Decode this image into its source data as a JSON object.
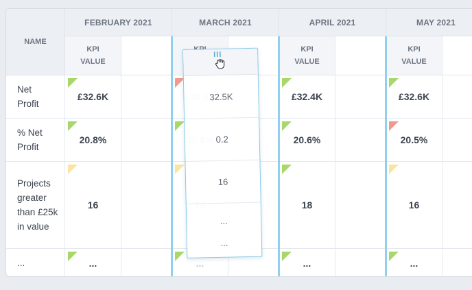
{
  "table": {
    "name_header": "NAME",
    "months": [
      "FEBRUARY 2021",
      "MARCH 2021",
      "APRIL 2021",
      "MAY 2021"
    ],
    "kpi_header_line1": "KPI",
    "kpi_header_line2": "VALUE",
    "rows": [
      {
        "label": "Net Profit",
        "values": [
          "£32.6K",
          "£32.6K",
          "£32.4K",
          "£32.6K"
        ],
        "status": [
          "green",
          "red",
          "green",
          "green"
        ]
      },
      {
        "label": "% Net Profit",
        "values": [
          "20.8%",
          "20.8%",
          "20.6%",
          "20.5%"
        ],
        "status": [
          "green",
          "green",
          "green",
          "red"
        ]
      },
      {
        "label": "Projects greater than £25k in value",
        "values": [
          "16",
          "16",
          "18",
          "16"
        ],
        "status": [
          "yellow",
          "yellow",
          "green",
          "yellow"
        ]
      },
      {
        "label": "...",
        "values": [
          "...",
          "...",
          "...",
          "..."
        ],
        "status": [
          "green",
          "green",
          "green",
          "green"
        ]
      }
    ]
  },
  "drag_column": {
    "grip": "III",
    "header_fragment": "KPI VALUE",
    "values": [
      "32.5K",
      "0.2",
      "16",
      "...",
      "..."
    ]
  },
  "colors": {
    "status_green": "#a8d86b",
    "status_red": "#f2998b",
    "status_yellow": "#fbe3a1",
    "drag_accent": "#8fd0ef"
  },
  "icons": {
    "cursor": "grab-hand-icon"
  }
}
